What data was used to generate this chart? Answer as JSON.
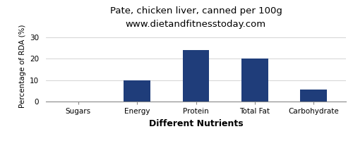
{
  "title": "Pate, chicken liver, canned per 100g",
  "subtitle": "www.dietandfitnesstoday.com",
  "xlabel": "Different Nutrients",
  "ylabel": "Percentage of RDA (%)",
  "categories": [
    "Sugars",
    "Energy",
    "Protein",
    "Total Fat",
    "Carbohydrate"
  ],
  "values": [
    0,
    10,
    24,
    20.2,
    5.5
  ],
  "bar_color": "#1f3d7a",
  "ylim": [
    0,
    33
  ],
  "yticks": [
    0,
    10,
    20,
    30
  ],
  "background_color": "#ffffff",
  "title_fontsize": 9.5,
  "subtitle_fontsize": 8,
  "xlabel_fontsize": 9,
  "ylabel_fontsize": 7.5,
  "tick_fontsize": 7.5
}
